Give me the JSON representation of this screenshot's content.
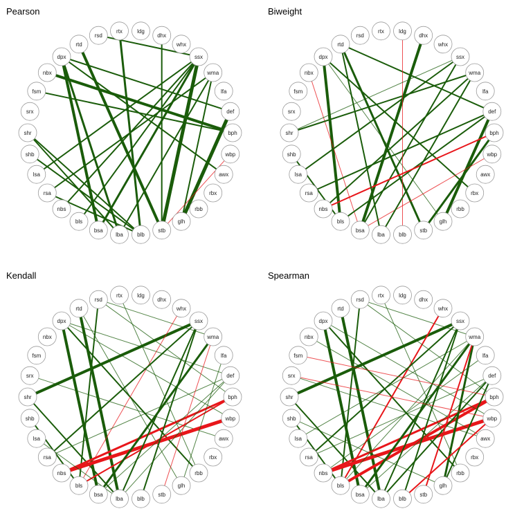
{
  "nodes": [
    "rtx",
    "ldg",
    "dhx",
    "whx",
    "ssx",
    "wma",
    "lfa",
    "def",
    "bph",
    "wbp",
    "awx",
    "rbx",
    "rbb",
    "glh",
    "stb",
    "blb",
    "lba",
    "bsa",
    "bls",
    "nbs",
    "rsa",
    "lsa",
    "shb",
    "shr",
    "srx",
    "fsm",
    "nbx",
    "dpx",
    "rtd",
    "rsd"
  ],
  "colors": {
    "positive": "#1a5c0a",
    "negative": "#e8161a",
    "node_fill": "#ffffff",
    "node_stroke": "#9a9a9a"
  },
  "panels": [
    {
      "title": "Pearson",
      "edges": [
        {
          "a": "dpx",
          "b": "bsa",
          "w": 4,
          "sign": "pos"
        },
        {
          "a": "dpx",
          "b": "lba",
          "w": 3,
          "sign": "pos"
        },
        {
          "a": "rtd",
          "b": "stb",
          "w": 4,
          "sign": "pos"
        },
        {
          "a": "nbx",
          "b": "bph",
          "w": 4,
          "sign": "pos"
        },
        {
          "a": "fsm",
          "b": "bph",
          "w": 2,
          "sign": "pos"
        },
        {
          "a": "rsd",
          "b": "ssx",
          "w": 2,
          "sign": "pos"
        },
        {
          "a": "shb",
          "b": "blb",
          "w": 2,
          "sign": "pos"
        },
        {
          "a": "shr",
          "b": "blb",
          "w": 2,
          "sign": "pos"
        },
        {
          "a": "lsa",
          "b": "ssx",
          "w": 2,
          "sign": "pos"
        },
        {
          "a": "rsa",
          "b": "wma",
          "w": 2,
          "sign": "pos"
        },
        {
          "a": "bls",
          "b": "ssx",
          "w": 2,
          "sign": "pos"
        },
        {
          "a": "bsa",
          "b": "ssx",
          "w": 3,
          "sign": "pos"
        },
        {
          "a": "stb",
          "b": "ssx",
          "w": 5,
          "sign": "pos"
        },
        {
          "a": "glh",
          "b": "def",
          "w": 5,
          "sign": "pos"
        },
        {
          "a": "blb",
          "b": "rtx",
          "w": 3,
          "sign": "pos"
        },
        {
          "a": "stb",
          "b": "dhx",
          "w": 2,
          "sign": "pos"
        },
        {
          "a": "nbs",
          "b": "ssx",
          "w": 2,
          "sign": "pos"
        },
        {
          "a": "rsa",
          "b": "blb",
          "w": 2,
          "sign": "pos"
        },
        {
          "a": "glh",
          "b": "wma",
          "w": 2,
          "sign": "pos"
        },
        {
          "a": "dpx",
          "b": "awx",
          "w": 2,
          "sign": "pos"
        },
        {
          "a": "dpx",
          "b": "def",
          "w": 2,
          "sign": "pos"
        },
        {
          "a": "lba",
          "b": "shr",
          "w": 2,
          "sign": "pos"
        },
        {
          "a": "stb",
          "b": "wbp",
          "w": 1,
          "sign": "neg"
        },
        {
          "a": "lba",
          "b": "wma",
          "w": 2,
          "sign": "pos"
        }
      ]
    },
    {
      "title": "Biweight",
      "edges": [
        {
          "a": "dpx",
          "b": "bls",
          "w": 4,
          "sign": "pos"
        },
        {
          "a": "dpx",
          "b": "rbx",
          "w": 2,
          "sign": "pos"
        },
        {
          "a": "dpx",
          "b": "glh",
          "w": 1,
          "sign": "pos"
        },
        {
          "a": "rtd",
          "b": "stb",
          "w": 3,
          "sign": "pos"
        },
        {
          "a": "rtd",
          "b": "def",
          "w": 2,
          "sign": "pos"
        },
        {
          "a": "nbx",
          "b": "bsa",
          "w": 1,
          "sign": "neg"
        },
        {
          "a": "shr",
          "b": "wma",
          "w": 2,
          "sign": "pos"
        },
        {
          "a": "shb",
          "b": "bls",
          "w": 2,
          "sign": "pos"
        },
        {
          "a": "lsa",
          "b": "ssx",
          "w": 2,
          "sign": "pos"
        },
        {
          "a": "nbs",
          "b": "wma",
          "w": 2,
          "sign": "pos"
        },
        {
          "a": "bls",
          "b": "def",
          "w": 2,
          "sign": "pos"
        },
        {
          "a": "bsa",
          "b": "dhx",
          "w": 4,
          "sign": "pos"
        },
        {
          "a": "bsa",
          "b": "ssx",
          "w": 2,
          "sign": "pos"
        },
        {
          "a": "glh",
          "b": "def",
          "w": 4,
          "sign": "pos"
        },
        {
          "a": "stb",
          "b": "bph",
          "w": 3,
          "sign": "pos"
        },
        {
          "a": "blb",
          "b": "ldg",
          "w": 1,
          "sign": "neg"
        },
        {
          "a": "nbs",
          "b": "bph",
          "w": 2,
          "sign": "neg"
        },
        {
          "a": "bsa",
          "b": "wbp",
          "w": 1,
          "sign": "neg"
        },
        {
          "a": "rsa",
          "b": "def",
          "w": 2,
          "sign": "pos"
        },
        {
          "a": "lba",
          "b": "wma",
          "w": 2,
          "sign": "pos"
        },
        {
          "a": "shr",
          "b": "ssx",
          "w": 1,
          "sign": "pos"
        },
        {
          "a": "lba",
          "b": "rtd",
          "w": 2,
          "sign": "pos"
        }
      ]
    },
    {
      "title": "Kendall",
      "edges": [
        {
          "a": "dpx",
          "b": "bsa",
          "w": 4,
          "sign": "pos"
        },
        {
          "a": "dpx",
          "b": "rbb",
          "w": 2,
          "sign": "pos"
        },
        {
          "a": "dpx",
          "b": "def",
          "w": 1,
          "sign": "pos"
        },
        {
          "a": "rtd",
          "b": "lba",
          "w": 4,
          "sign": "pos"
        },
        {
          "a": "rtd",
          "b": "glh",
          "w": 1,
          "sign": "pos"
        },
        {
          "a": "rsd",
          "b": "wma",
          "w": 1,
          "sign": "pos"
        },
        {
          "a": "rsd",
          "b": "bls",
          "w": 2,
          "sign": "pos"
        },
        {
          "a": "shr",
          "b": "ssx",
          "w": 4,
          "sign": "pos"
        },
        {
          "a": "shr",
          "b": "lba",
          "w": 2,
          "sign": "pos"
        },
        {
          "a": "shb",
          "b": "bls",
          "w": 2,
          "sign": "pos"
        },
        {
          "a": "srx",
          "b": "awx",
          "w": 1,
          "sign": "pos"
        },
        {
          "a": "nbs",
          "b": "wbp",
          "w": 5,
          "sign": "neg"
        },
        {
          "a": "nbs",
          "b": "bph",
          "w": 3,
          "sign": "neg"
        },
        {
          "a": "bls",
          "b": "bph",
          "w": 2,
          "sign": "neg"
        },
        {
          "a": "bls",
          "b": "whx",
          "w": 1,
          "sign": "neg"
        },
        {
          "a": "bsa",
          "b": "wma",
          "w": 3,
          "sign": "pos"
        },
        {
          "a": "lba",
          "b": "ssx",
          "w": 2,
          "sign": "pos"
        },
        {
          "a": "blb",
          "b": "ssx",
          "w": 2,
          "sign": "pos"
        },
        {
          "a": "rsa",
          "b": "ssx",
          "w": 2,
          "sign": "pos"
        },
        {
          "a": "glh",
          "b": "lfa",
          "w": 1,
          "sign": "pos"
        },
        {
          "a": "bsa",
          "b": "def",
          "w": 1,
          "sign": "pos"
        },
        {
          "a": "lba",
          "b": "def",
          "w": 1,
          "sign": "pos"
        },
        {
          "a": "rtx",
          "b": "rbb",
          "w": 1,
          "sign": "pos"
        },
        {
          "a": "dpx",
          "b": "wbp",
          "w": 1,
          "sign": "pos"
        },
        {
          "a": "rsd",
          "b": "bph",
          "w": 1,
          "sign": "pos"
        },
        {
          "a": "rsa",
          "b": "def",
          "w": 1,
          "sign": "pos"
        },
        {
          "a": "stb",
          "b": "wma",
          "w": 1,
          "sign": "neg"
        },
        {
          "a": "lsa",
          "b": "lba",
          "w": 1,
          "sign": "pos"
        }
      ]
    },
    {
      "title": "Spearman",
      "edges": [
        {
          "a": "dpx",
          "b": "bsa",
          "w": 4,
          "sign": "pos"
        },
        {
          "a": "dpx",
          "b": "rbb",
          "w": 2,
          "sign": "pos"
        },
        {
          "a": "rtd",
          "b": "lba",
          "w": 4,
          "sign": "pos"
        },
        {
          "a": "rsd",
          "b": "bls",
          "w": 2,
          "sign": "pos"
        },
        {
          "a": "rsd",
          "b": "wma",
          "w": 1,
          "sign": "pos"
        },
        {
          "a": "shr",
          "b": "ssx",
          "w": 4,
          "sign": "pos"
        },
        {
          "a": "shr",
          "b": "lba",
          "w": 2,
          "sign": "pos"
        },
        {
          "a": "shb",
          "b": "bls",
          "w": 2,
          "sign": "pos"
        },
        {
          "a": "srx",
          "b": "awx",
          "w": 1,
          "sign": "pos"
        },
        {
          "a": "nbs",
          "b": "wbp",
          "w": 5,
          "sign": "neg"
        },
        {
          "a": "nbs",
          "b": "bph",
          "w": 3,
          "sign": "neg"
        },
        {
          "a": "bls",
          "b": "bph",
          "w": 4,
          "sign": "neg"
        },
        {
          "a": "bls",
          "b": "whx",
          "w": 2,
          "sign": "neg"
        },
        {
          "a": "bsa",
          "b": "wma",
          "w": 3,
          "sign": "pos"
        },
        {
          "a": "lba",
          "b": "ssx",
          "w": 2,
          "sign": "pos"
        },
        {
          "a": "blb",
          "b": "ssx",
          "w": 2,
          "sign": "pos"
        },
        {
          "a": "glh",
          "b": "wma",
          "w": 3,
          "sign": "pos"
        },
        {
          "a": "rsa",
          "b": "ssx",
          "w": 2,
          "sign": "pos"
        },
        {
          "a": "glh",
          "b": "def",
          "w": 2,
          "sign": "pos"
        },
        {
          "a": "bsa",
          "b": "def",
          "w": 1,
          "sign": "pos"
        },
        {
          "a": "lba",
          "b": "def",
          "w": 2,
          "sign": "pos"
        },
        {
          "a": "rtx",
          "b": "rbb",
          "w": 1,
          "sign": "pos"
        },
        {
          "a": "nbx",
          "b": "awx",
          "w": 1,
          "sign": "pos"
        },
        {
          "a": "dpx",
          "b": "wbp",
          "w": 1,
          "sign": "pos"
        },
        {
          "a": "rsd",
          "b": "bph",
          "w": 1,
          "sign": "pos"
        },
        {
          "a": "srx",
          "b": "wbp",
          "w": 1,
          "sign": "neg"
        },
        {
          "a": "fsm",
          "b": "bph",
          "w": 1,
          "sign": "neg"
        },
        {
          "a": "lsa",
          "b": "wma",
          "w": 1,
          "sign": "pos"
        },
        {
          "a": "rsa",
          "b": "def",
          "w": 1,
          "sign": "pos"
        },
        {
          "a": "stb",
          "b": "wma",
          "w": 2,
          "sign": "neg"
        },
        {
          "a": "blb",
          "b": "wbp",
          "w": 2,
          "sign": "neg"
        },
        {
          "a": "nbs",
          "b": "lfa",
          "w": 1,
          "sign": "pos"
        },
        {
          "a": "shb",
          "b": "glh",
          "w": 1,
          "sign": "pos"
        },
        {
          "a": "bls",
          "b": "wma",
          "w": 1,
          "sign": "pos"
        }
      ]
    }
  ]
}
